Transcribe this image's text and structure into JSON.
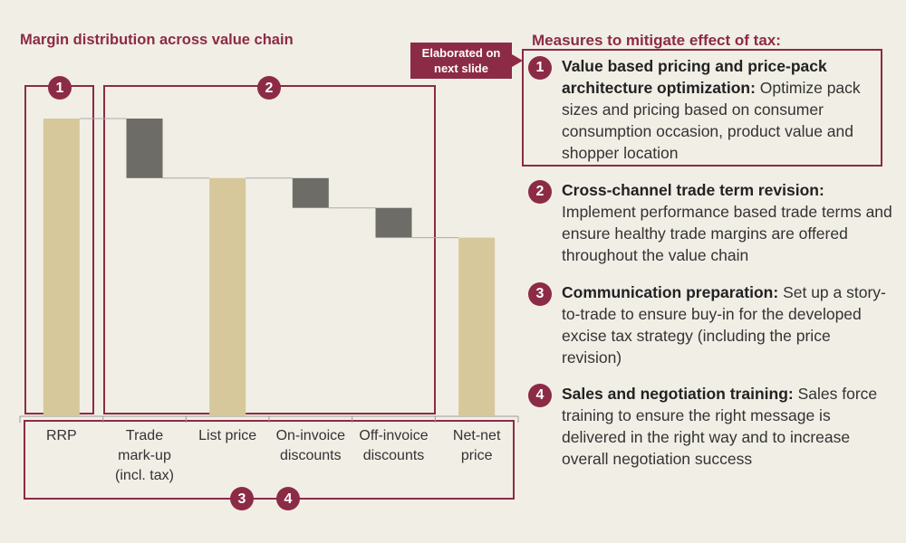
{
  "chart_data": {
    "type": "waterfall",
    "title": "Margin distribution across value chain",
    "categories": [
      "RRP",
      "Trade mark-up (incl. tax)",
      "List price",
      "On-invoice discounts",
      "Off-invoice discounts",
      "Net-net price"
    ],
    "values": [
      100,
      -20,
      80,
      -10,
      -10,
      60
    ],
    "colors": [
      "#d6c89a",
      "#6d6c67",
      "#d6c89a",
      "#6d6c67",
      "#6d6c67",
      "#d6c89a"
    ],
    "ylim": [
      0,
      100
    ],
    "brackets": [
      "1",
      "2",
      "3",
      "4"
    ]
  },
  "measures": {
    "title": "Measures to mitigate effect of tax:",
    "callout": "Elaborated on next slide",
    "items": [
      {
        "number": "1",
        "heading": "Value based pricing and price-pack architecture optimization:",
        "text": "Optimize pack sizes and pricing based on consumer consumption occasion, product value and shopper location"
      },
      {
        "number": "2",
        "heading": "Cross-channel trade term revision:",
        "text": "Implement performance based trade terms and ensure healthy trade margins are offered throughout the value chain"
      },
      {
        "number": "3",
        "heading": "Communication preparation:",
        "text": "Set up a story-to-trade to ensure buy-in for the developed excise tax strategy (including the price revision)"
      },
      {
        "number": "4",
        "heading": "Sales and negotiation training:",
        "text": "Sales force training to ensure the right message is delivered in the right way and to increase overall negotiation success"
      }
    ]
  }
}
